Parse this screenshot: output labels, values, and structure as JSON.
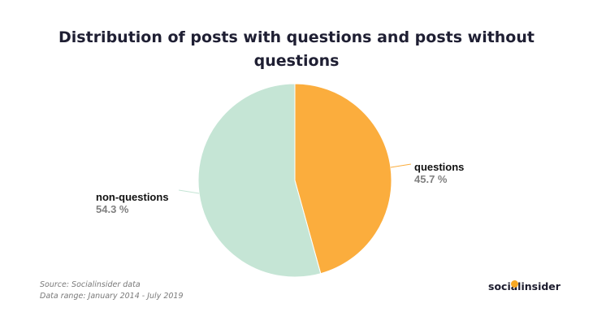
{
  "title": "Distribution of posts with questions and posts without questions",
  "chart_data": {
    "type": "pie",
    "slices": [
      {
        "label": "questions",
        "value": 45.7,
        "display": "45.7 %",
        "color": "#fbad3d"
      },
      {
        "label": "non-questions",
        "value": 54.3,
        "display": "54.3 %",
        "color": "#c5e5d5"
      }
    ]
  },
  "footer": {
    "source": "Source: Socialinsider data",
    "range": "Data range: January 2014 - July 2019"
  },
  "brand": {
    "name": "socialinsider",
    "accent": "#f7a823"
  }
}
